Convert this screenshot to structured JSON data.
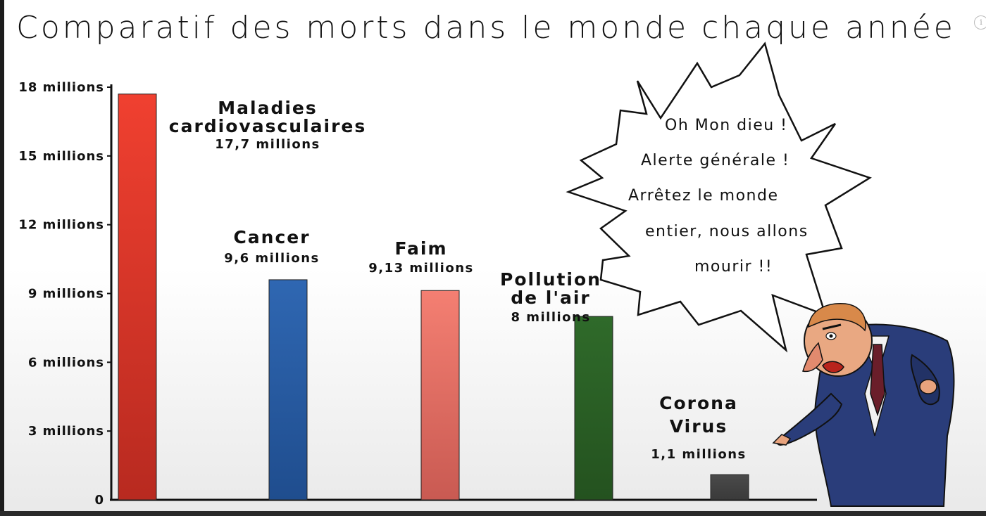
{
  "title": "Comparatif des morts dans le monde chaque année",
  "chart_data": {
    "type": "bar",
    "title": "Comparatif des morts dans le monde chaque année",
    "ylim": [
      0,
      18
    ],
    "yticks": [
      {
        "value": 18,
        "label": "18 millions"
      },
      {
        "value": 15,
        "label": "15 millions"
      },
      {
        "value": 12,
        "label": "12 millions"
      },
      {
        "value": 9,
        "label": "9 millions"
      },
      {
        "value": 6,
        "label": "6 millions"
      },
      {
        "value": 3,
        "label": "3 millions"
      },
      {
        "value": 0,
        "label": "0"
      }
    ],
    "grid": false,
    "bars": [
      {
        "name_lines": [
          "Maladies",
          "cardiovasculaires"
        ],
        "value": 17.7,
        "value_label": "17,7 millions",
        "color_top": "#f04030",
        "color_bottom": "#b82a20"
      },
      {
        "name_lines": [
          "Cancer"
        ],
        "value": 9.6,
        "value_label": "9,6 millions",
        "color_top": "#2f67b2",
        "color_bottom": "#1f4d8e"
      },
      {
        "name_lines": [
          "Faim"
        ],
        "value": 9.13,
        "value_label": "9,13 millions",
        "color_top": "#f47f72",
        "color_bottom": "#c95a52"
      },
      {
        "name_lines": [
          "Pollution",
          "de l'air"
        ],
        "value": 8,
        "value_label": "8 millions",
        "color_top": "#2f6a2a",
        "color_bottom": "#24521f"
      },
      {
        "name_lines": [
          "Corona",
          "Virus"
        ],
        "value": 1.1,
        "value_label": "1,1 millions",
        "color_top": "#4a4a4a",
        "color_bottom": "#3a3a3a"
      }
    ]
  },
  "bubble": {
    "lines": [
      "Oh Mon dieu !",
      "Alerte générale !",
      "Arrêtez le monde",
      "entier, nous allons",
      "mourir !!"
    ]
  },
  "icons": {
    "info": "i"
  }
}
